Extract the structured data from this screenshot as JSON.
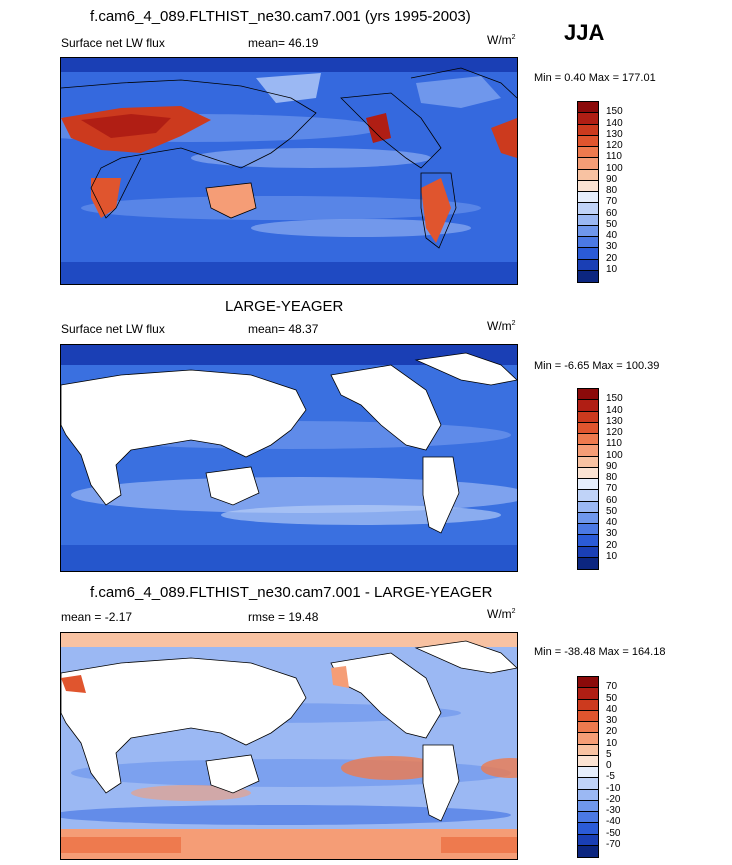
{
  "season": "JJA",
  "units_main": "W/m",
  "units_sup": "2",
  "panels": [
    {
      "title": "f.cam6_4_089.FLTHIST_ne30.cam7.001 (yrs 1995-2003)",
      "left": "Surface net LW flux",
      "center": "mean=  46.19",
      "minmax": "Min =   0.40 Max = 177.01"
    },
    {
      "title": "LARGE-YEAGER",
      "left": "Surface net LW flux",
      "center": "mean=  48.37",
      "minmax": "Min =  -6.65 Max = 100.39"
    },
    {
      "title": "f.cam6_4_089.FLTHIST_ne30.cam7.001 - LARGE-YEAGER",
      "left": "mean =  -2.17",
      "center": "rmse =  19.48",
      "minmax": "Min = -38.48 Max = 164.18"
    }
  ],
  "chart_data": [
    {
      "type": "heatmap",
      "title": "f.cam6_4_089.FLTHIST_ne30.cam7.001 (yrs 1995-2003)",
      "variable": "Surface net LW flux",
      "mean": 46.19,
      "min": 0.4,
      "max": 177.01,
      "units": "W/m2",
      "colorbar_levels": [
        "150",
        "140",
        "130",
        "120",
        "110",
        "100",
        "90",
        "80",
        "70",
        "60",
        "50",
        "40",
        "30",
        "20",
        "10"
      ],
      "colorbar_colors": [
        "#8b0a0a",
        "#b01e14",
        "#cc3a1e",
        "#e0552e",
        "#ee7a4e",
        "#f59d76",
        "#f8c2a2",
        "#fbe3d3",
        "#e6eefc",
        "#c0d3f8",
        "#9bb8f3",
        "#6f97ec",
        "#4b79e4",
        "#2b5bd7",
        "#1a3fb5",
        "#0c2680"
      ]
    },
    {
      "type": "heatmap",
      "title": "LARGE-YEAGER",
      "variable": "Surface net LW flux",
      "mean": 48.37,
      "min": -6.65,
      "max": 100.39,
      "units": "W/m2",
      "colorbar_levels": [
        "150",
        "140",
        "130",
        "120",
        "110",
        "100",
        "90",
        "80",
        "70",
        "60",
        "50",
        "40",
        "30",
        "20",
        "10"
      ],
      "colorbar_colors": [
        "#8b0a0a",
        "#b01e14",
        "#cc3a1e",
        "#e0552e",
        "#ee7a4e",
        "#f59d76",
        "#f8c2a2",
        "#fbe3d3",
        "#e6eefc",
        "#c0d3f8",
        "#9bb8f3",
        "#6f97ec",
        "#4b79e4",
        "#2b5bd7",
        "#1a3fb5",
        "#0c2680"
      ]
    },
    {
      "type": "heatmap",
      "title": "f.cam6_4_089.FLTHIST_ne30.cam7.001 - LARGE-YEAGER",
      "mean": -2.17,
      "rmse": 19.48,
      "min": -38.48,
      "max": 164.18,
      "units": "W/m2",
      "colorbar_levels": [
        "70",
        "50",
        "40",
        "30",
        "20",
        "10",
        "5",
        "0",
        "-5",
        "-10",
        "-20",
        "-30",
        "-40",
        "-50",
        "-70"
      ],
      "colorbar_colors": [
        "#8b0a0a",
        "#b01e14",
        "#cc3a1e",
        "#e0552e",
        "#ee7a4e",
        "#f59d76",
        "#f8c2a2",
        "#fbe3d3",
        "#e6eefc",
        "#c0d3f8",
        "#9bb8f3",
        "#6f97ec",
        "#4b79e4",
        "#2b5bd7",
        "#1a3fb5",
        "#0c2680"
      ]
    }
  ]
}
